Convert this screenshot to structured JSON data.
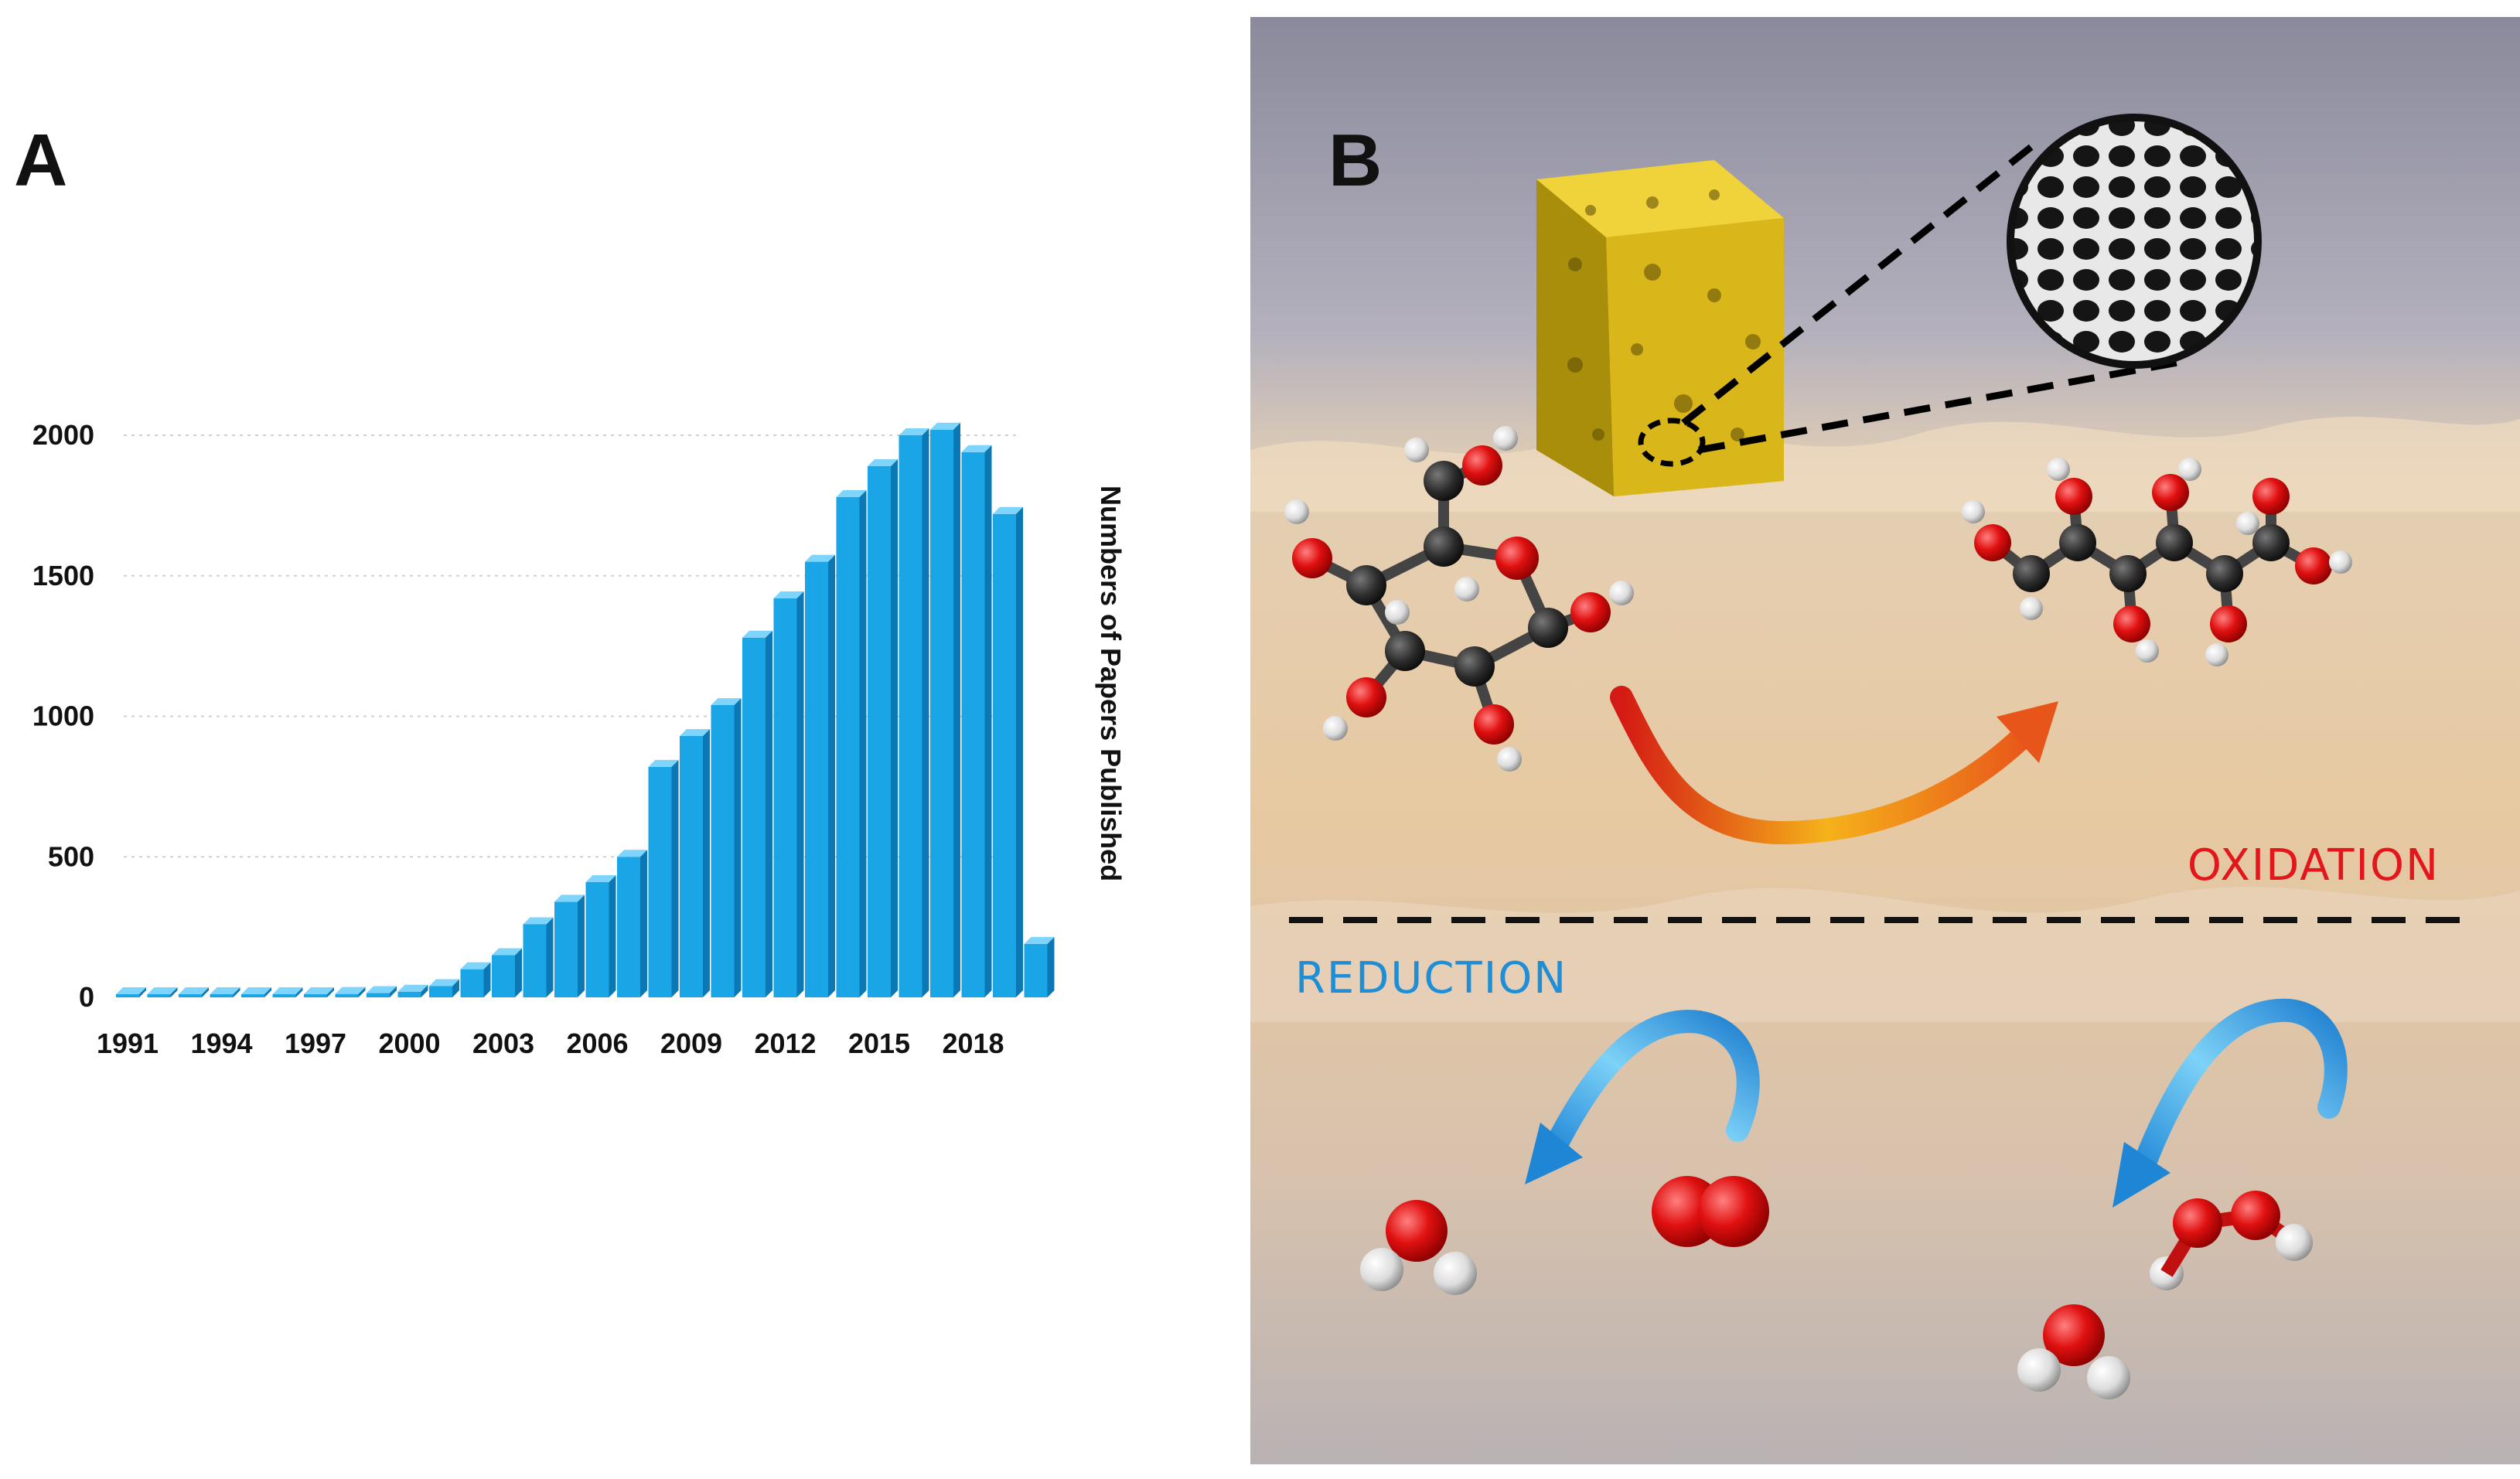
{
  "panels": {
    "a": "A",
    "b": "B"
  },
  "chart_data": {
    "type": "bar",
    "categories": [
      "1991",
      "1992",
      "1993",
      "1994",
      "1995",
      "1996",
      "1997",
      "1998",
      "1999",
      "2000",
      "2001",
      "2002",
      "2003",
      "2004",
      "2005",
      "2006",
      "2007",
      "2008",
      "2009",
      "2010",
      "2011",
      "2012",
      "2013",
      "2014",
      "2015",
      "2016",
      "2017",
      "2018",
      "2019",
      "2020"
    ],
    "values": [
      2,
      3,
      4,
      5,
      6,
      8,
      10,
      12,
      15,
      20,
      40,
      100,
      150,
      260,
      340,
      410,
      500,
      820,
      930,
      1040,
      1280,
      1420,
      1550,
      1780,
      1890,
      2000,
      2020,
      1940,
      1720,
      190
    ],
    "tick_labels": [
      "1991",
      "1994",
      "1997",
      "2000",
      "2003",
      "2006",
      "2009",
      "2012",
      "2015",
      "2018"
    ],
    "yticks": [
      "0",
      "500",
      "1000",
      "1500",
      "2000"
    ],
    "ylabel": "Numbers of Papers Published",
    "xlabel": "",
    "ylim": [
      0,
      2000
    ],
    "grid": true,
    "colors": {
      "bar": "#1aa6e6",
      "bar_side": "#0b78b3",
      "bar_top": "#7fd4fb"
    }
  },
  "scene": {
    "oxidation_label": "OXIDATION",
    "reduction_label": "REDUCTION",
    "colors": {
      "oxidation": "#e3161b",
      "reduction": "#1e8fd6",
      "gold": "#e4c11a"
    }
  }
}
